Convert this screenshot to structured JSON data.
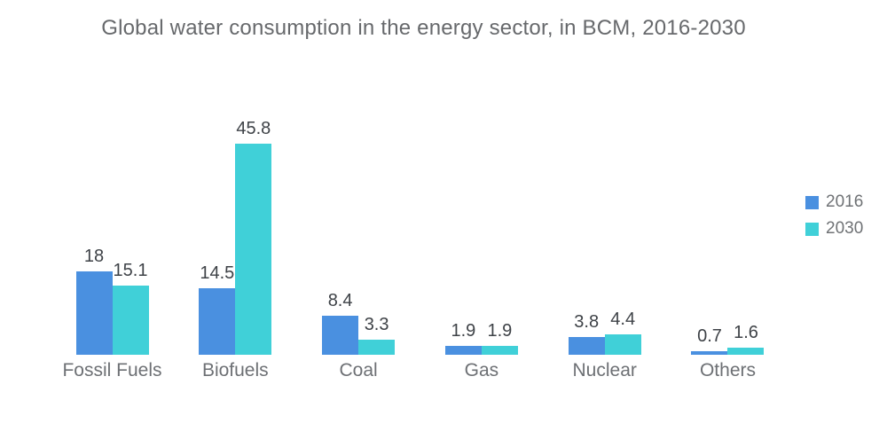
{
  "title": "Global water consumption in the energy sector, in BCM, 2016-2030",
  "chart_data": {
    "type": "bar",
    "title": "Global water consumption in the energy sector, in BCM, 2016-2030",
    "categories": [
      "Fossil Fuels",
      "Biofuels",
      "Coal",
      "Gas",
      "Nuclear",
      "Others"
    ],
    "series": [
      {
        "name": "2016",
        "color": "#4a90e0",
        "values": [
          18,
          14.5,
          8.4,
          1.9,
          3.8,
          0.7
        ]
      },
      {
        "name": "2030",
        "color": "#40d0d8",
        "values": [
          15.1,
          45.8,
          3.3,
          1.9,
          4.4,
          1.6
        ]
      }
    ],
    "value_labels": [
      [
        "18",
        "15.1"
      ],
      [
        "14.5",
        "45.8"
      ],
      [
        "8.4",
        "3.3"
      ],
      [
        "1.9",
        "1.9"
      ],
      [
        "3.8",
        "4.4"
      ],
      [
        "0.7",
        "1.6"
      ]
    ],
    "xlabel": "",
    "ylabel": "",
    "ylim": [
      0,
      48
    ],
    "grid": false,
    "axes_visible": false,
    "legend_position": "right"
  },
  "legend": {
    "items": [
      {
        "label": "2016",
        "color": "#4a90e0"
      },
      {
        "label": "2030",
        "color": "#40d0d8"
      }
    ]
  },
  "colors": {
    "series_2016": "#4a90e0",
    "series_2030": "#40d0d8",
    "title_text": "#67696c",
    "value_text": "#3e4247",
    "category_text": "#6d7074",
    "background": "#ffffff"
  }
}
